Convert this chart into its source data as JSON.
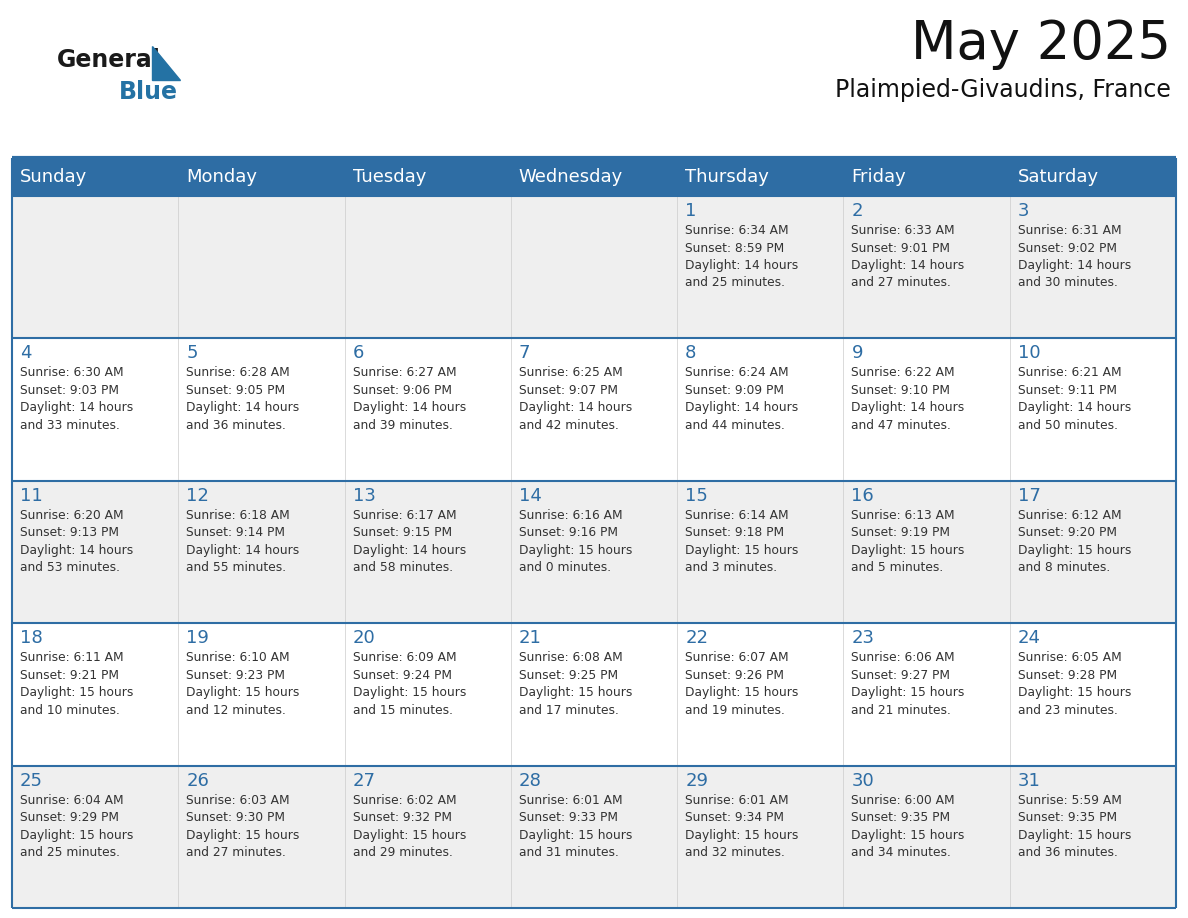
{
  "title": "May 2025",
  "subtitle": "Plaimpied-Givaudins, France",
  "header_bg": "#2E6DA4",
  "header_text": "#FFFFFF",
  "cell_bg_odd": "#EFEFEF",
  "cell_bg_even": "#FFFFFF",
  "day_number_color": "#2E6DA4",
  "info_text_color": "#333333",
  "days_of_week": [
    "Sunday",
    "Monday",
    "Tuesday",
    "Wednesday",
    "Thursday",
    "Friday",
    "Saturday"
  ],
  "weeks": [
    [
      {
        "day": "",
        "info": ""
      },
      {
        "day": "",
        "info": ""
      },
      {
        "day": "",
        "info": ""
      },
      {
        "day": "",
        "info": ""
      },
      {
        "day": "1",
        "info": "Sunrise: 6:34 AM\nSunset: 8:59 PM\nDaylight: 14 hours\nand 25 minutes."
      },
      {
        "day": "2",
        "info": "Sunrise: 6:33 AM\nSunset: 9:01 PM\nDaylight: 14 hours\nand 27 minutes."
      },
      {
        "day": "3",
        "info": "Sunrise: 6:31 AM\nSunset: 9:02 PM\nDaylight: 14 hours\nand 30 minutes."
      }
    ],
    [
      {
        "day": "4",
        "info": "Sunrise: 6:30 AM\nSunset: 9:03 PM\nDaylight: 14 hours\nand 33 minutes."
      },
      {
        "day": "5",
        "info": "Sunrise: 6:28 AM\nSunset: 9:05 PM\nDaylight: 14 hours\nand 36 minutes."
      },
      {
        "day": "6",
        "info": "Sunrise: 6:27 AM\nSunset: 9:06 PM\nDaylight: 14 hours\nand 39 minutes."
      },
      {
        "day": "7",
        "info": "Sunrise: 6:25 AM\nSunset: 9:07 PM\nDaylight: 14 hours\nand 42 minutes."
      },
      {
        "day": "8",
        "info": "Sunrise: 6:24 AM\nSunset: 9:09 PM\nDaylight: 14 hours\nand 44 minutes."
      },
      {
        "day": "9",
        "info": "Sunrise: 6:22 AM\nSunset: 9:10 PM\nDaylight: 14 hours\nand 47 minutes."
      },
      {
        "day": "10",
        "info": "Sunrise: 6:21 AM\nSunset: 9:11 PM\nDaylight: 14 hours\nand 50 minutes."
      }
    ],
    [
      {
        "day": "11",
        "info": "Sunrise: 6:20 AM\nSunset: 9:13 PM\nDaylight: 14 hours\nand 53 minutes."
      },
      {
        "day": "12",
        "info": "Sunrise: 6:18 AM\nSunset: 9:14 PM\nDaylight: 14 hours\nand 55 minutes."
      },
      {
        "day": "13",
        "info": "Sunrise: 6:17 AM\nSunset: 9:15 PM\nDaylight: 14 hours\nand 58 minutes."
      },
      {
        "day": "14",
        "info": "Sunrise: 6:16 AM\nSunset: 9:16 PM\nDaylight: 15 hours\nand 0 minutes."
      },
      {
        "day": "15",
        "info": "Sunrise: 6:14 AM\nSunset: 9:18 PM\nDaylight: 15 hours\nand 3 minutes."
      },
      {
        "day": "16",
        "info": "Sunrise: 6:13 AM\nSunset: 9:19 PM\nDaylight: 15 hours\nand 5 minutes."
      },
      {
        "day": "17",
        "info": "Sunrise: 6:12 AM\nSunset: 9:20 PM\nDaylight: 15 hours\nand 8 minutes."
      }
    ],
    [
      {
        "day": "18",
        "info": "Sunrise: 6:11 AM\nSunset: 9:21 PM\nDaylight: 15 hours\nand 10 minutes."
      },
      {
        "day": "19",
        "info": "Sunrise: 6:10 AM\nSunset: 9:23 PM\nDaylight: 15 hours\nand 12 minutes."
      },
      {
        "day": "20",
        "info": "Sunrise: 6:09 AM\nSunset: 9:24 PM\nDaylight: 15 hours\nand 15 minutes."
      },
      {
        "day": "21",
        "info": "Sunrise: 6:08 AM\nSunset: 9:25 PM\nDaylight: 15 hours\nand 17 minutes."
      },
      {
        "day": "22",
        "info": "Sunrise: 6:07 AM\nSunset: 9:26 PM\nDaylight: 15 hours\nand 19 minutes."
      },
      {
        "day": "23",
        "info": "Sunrise: 6:06 AM\nSunset: 9:27 PM\nDaylight: 15 hours\nand 21 minutes."
      },
      {
        "day": "24",
        "info": "Sunrise: 6:05 AM\nSunset: 9:28 PM\nDaylight: 15 hours\nand 23 minutes."
      }
    ],
    [
      {
        "day": "25",
        "info": "Sunrise: 6:04 AM\nSunset: 9:29 PM\nDaylight: 15 hours\nand 25 minutes."
      },
      {
        "day": "26",
        "info": "Sunrise: 6:03 AM\nSunset: 9:30 PM\nDaylight: 15 hours\nand 27 minutes."
      },
      {
        "day": "27",
        "info": "Sunrise: 6:02 AM\nSunset: 9:32 PM\nDaylight: 15 hours\nand 29 minutes."
      },
      {
        "day": "28",
        "info": "Sunrise: 6:01 AM\nSunset: 9:33 PM\nDaylight: 15 hours\nand 31 minutes."
      },
      {
        "day": "29",
        "info": "Sunrise: 6:01 AM\nSunset: 9:34 PM\nDaylight: 15 hours\nand 32 minutes."
      },
      {
        "day": "30",
        "info": "Sunrise: 6:00 AM\nSunset: 9:35 PM\nDaylight: 15 hours\nand 34 minutes."
      },
      {
        "day": "31",
        "info": "Sunrise: 5:59 AM\nSunset: 9:35 PM\nDaylight: 15 hours\nand 36 minutes."
      }
    ]
  ],
  "logo_general_color": "#1a1a1a",
  "logo_blue_color": "#2472A4",
  "grid_line_color": "#2E6DA4",
  "fig_width": 11.88,
  "fig_height": 9.18,
  "fig_dpi": 100
}
